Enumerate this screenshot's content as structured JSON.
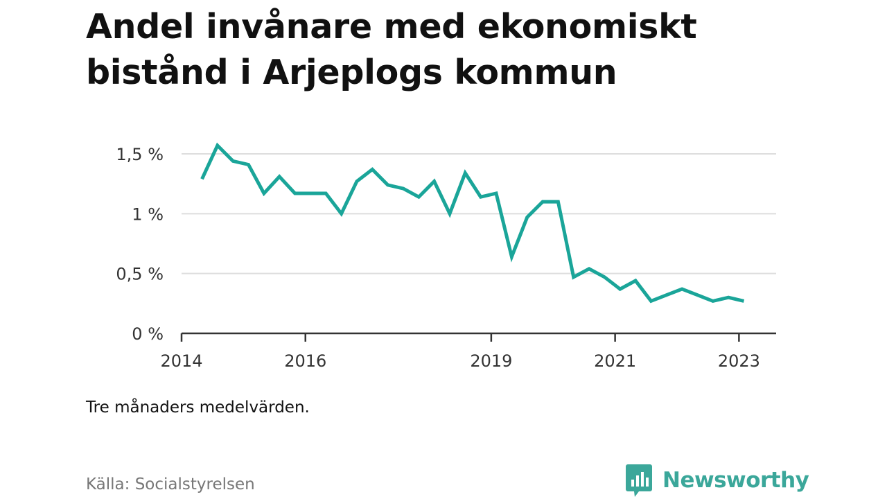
{
  "title": "Andel invånare med ekonomiskt bistånd i Arjeplogs kommun",
  "note": "Tre månaders medelvärden.",
  "source": "Källa: Socialstyrelsen",
  "brand": {
    "name": "Newsworthy",
    "icon": "newsworthy-logo-icon",
    "color": "#3ba79a"
  },
  "chart_data": {
    "type": "line",
    "title": "Andel invånare med ekonomiskt bistånd i Arjeplogs kommun",
    "xlabel": "",
    "ylabel": "",
    "ylim": [
      0,
      1.6
    ],
    "xlim": [
      2014.0,
      2023.6
    ],
    "grid": true,
    "legend": "none",
    "line_color": "#1aa599",
    "y_ticks": [
      {
        "value": 0,
        "label": "0 %"
      },
      {
        "value": 0.5,
        "label": "0,5 %"
      },
      {
        "value": 1,
        "label": "1 %"
      },
      {
        "value": 1.5,
        "label": "1,5 %"
      }
    ],
    "x_ticks": [
      {
        "value": 2014,
        "label": "2014"
      },
      {
        "value": 2016,
        "label": "2016"
      },
      {
        "value": 2019,
        "label": "2019"
      },
      {
        "value": 2021,
        "label": "2021"
      },
      {
        "value": 2023,
        "label": "2023"
      }
    ],
    "series": [
      {
        "x": [
          2014.33,
          2014.58,
          2014.83,
          2015.08,
          2015.33,
          2015.58,
          2015.83,
          2016.08,
          2016.33,
          2016.58,
          2016.83,
          2017.08,
          2017.33,
          2017.58,
          2017.83,
          2018.08,
          2018.33,
          2018.58,
          2018.83,
          2019.08,
          2019.33,
          2019.58,
          2019.83,
          2020.08,
          2020.33,
          2020.58,
          2020.83,
          2021.08,
          2021.33,
          2021.58,
          2021.83,
          2022.08,
          2022.33,
          2022.58,
          2022.83,
          2023.08
        ],
        "y": [
          1.29,
          1.57,
          1.44,
          1.41,
          1.17,
          1.31,
          1.17,
          1.17,
          1.17,
          1.0,
          1.27,
          1.37,
          1.24,
          1.21,
          1.14,
          1.27,
          1.0,
          1.34,
          1.14,
          1.17,
          0.64,
          0.97,
          1.1,
          1.1,
          0.47,
          0.54,
          0.47,
          0.37,
          0.44,
          0.27,
          0.32,
          0.37,
          0.32,
          0.27,
          0.3,
          0.27
        ]
      }
    ]
  }
}
